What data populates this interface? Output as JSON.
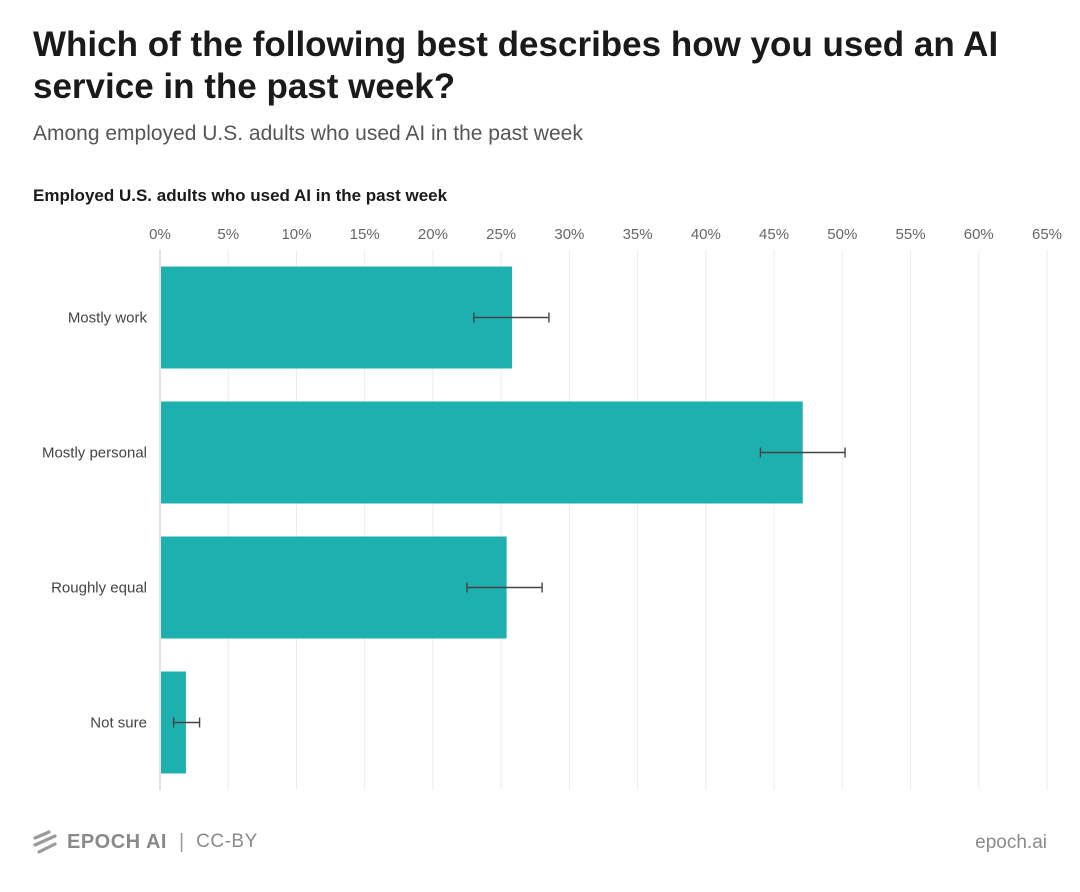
{
  "header": {
    "title": "Which of the following best describes how you used an AI service in the past week?",
    "subtitle": "Among employed U.S. adults who used AI in the past week",
    "chart_label": "Employed U.S. adults who used AI in the past week"
  },
  "chart_data": {
    "type": "bar",
    "orientation": "horizontal",
    "title": "Which of the following best describes how you used an AI service in the past week?",
    "subtitle": "Among employed U.S. adults who used AI in the past week",
    "series": [
      {
        "name": "Employed U.S. adults who used AI in the past week",
        "values": [
          25.8,
          47.1,
          25.4,
          1.9
        ],
        "error_low": [
          23.0,
          44.0,
          22.5,
          1.0
        ],
        "error_high": [
          28.5,
          50.2,
          28.0,
          2.9
        ]
      }
    ],
    "categories": [
      "Mostly work",
      "Mostly personal",
      "Roughly equal",
      "Not sure"
    ],
    "xlim": [
      0,
      65
    ],
    "x_ticks": [
      0,
      5,
      10,
      15,
      20,
      25,
      30,
      35,
      40,
      45,
      50,
      55,
      60,
      65
    ],
    "x_tick_labels": [
      "0%",
      "5%",
      "10%",
      "15%",
      "20%",
      "25%",
      "30%",
      "35%",
      "40%",
      "45%",
      "50%",
      "55%",
      "60%",
      "65%"
    ],
    "grid": true,
    "bar_color": "#1eb0ae"
  },
  "footer": {
    "brand": "EPOCH AI",
    "separator": "|",
    "license": "CC-BY",
    "site": "epoch.ai",
    "logo_icon": "stripes-logo-icon"
  }
}
